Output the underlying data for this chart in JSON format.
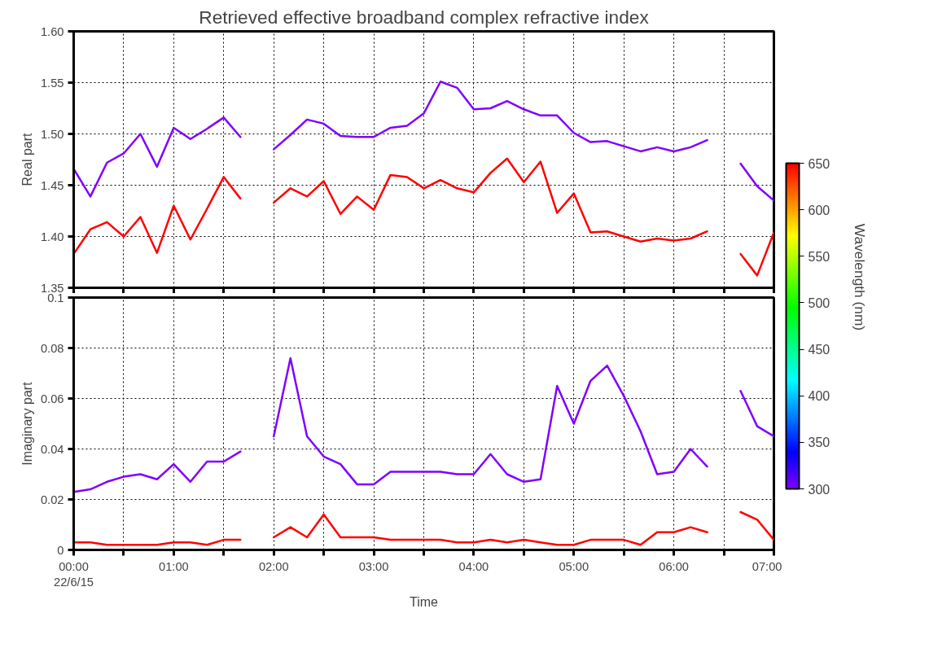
{
  "chart_data": [
    {
      "type": "line",
      "title": "Retrieved effective broadband complex refractive index",
      "ylabel": "Real part",
      "grid": true,
      "tick_labels": "y",
      "clabel": "Wavelength (nm)",
      "clim": [
        300,
        650
      ],
      "cticks": [
        300,
        350,
        400,
        450,
        500,
        550,
        600,
        650
      ],
      "xlim": [
        0,
        7
      ],
      "xticks": [
        {
          "value": 0,
          "label": null
        },
        {
          "value": 0.5,
          "label": null
        },
        {
          "value": 1,
          "label": null
        },
        {
          "value": 1.5,
          "label": null
        },
        {
          "value": 2,
          "label": null
        },
        {
          "value": 2.5,
          "label": null
        },
        {
          "value": 3,
          "label": null
        },
        {
          "value": 3.5,
          "label": null
        },
        {
          "value": 4,
          "label": null
        },
        {
          "value": 4.5,
          "label": null
        },
        {
          "value": 5,
          "label": null
        },
        {
          "value": 5.5,
          "label": null
        },
        {
          "value": 6,
          "label": null
        },
        {
          "value": 6.5,
          "label": null
        },
        {
          "value": 7,
          "label": null
        }
      ],
      "ylim": [
        1.35,
        1.6
      ],
      "yticks": [
        1.35,
        {
          "value": 1.4,
          "label": "1.40"
        },
        1.45,
        {
          "value": 1.5,
          "label": "1.50"
        },
        1.55,
        {
          "value": 1.6,
          "label": "1.60"
        }
      ],
      "x": [
        0,
        0.167,
        0.333,
        0.5,
        0.667,
        0.833,
        1,
        1.167,
        1.333,
        1.5,
        1.667,
        1.833,
        2,
        2.167,
        2.333,
        2.5,
        2.667,
        2.833,
        3,
        3.167,
        3.333,
        3.5,
        3.667,
        3.833,
        4,
        4.167,
        4.333,
        4.5,
        4.667,
        4.833,
        5,
        5.167,
        5.333,
        5.5,
        5.667,
        5.833,
        6,
        6.167,
        6.333,
        6.5,
        6.667,
        6.833,
        7
      ],
      "series": [
        {
          "color": "#8000ff",
          "values": [
            1.466,
            1.439,
            1.472,
            1.481,
            1.5,
            1.468,
            1.506,
            1.495,
            1.505,
            1.516,
            1.497,
            null,
            1.485,
            1.499,
            1.514,
            1.51,
            1.498,
            1.497,
            1.497,
            1.506,
            1.508,
            1.52,
            1.551,
            1.545,
            1.524,
            1.525,
            1.532,
            1.524,
            1.518,
            1.518,
            1.501,
            1.492,
            1.493,
            1.488,
            1.483,
            1.487,
            1.483,
            1.487,
            1.494,
            null,
            1.471,
            1.449,
            1.435
          ]
        },
        {
          "color": "#ff0000",
          "values": [
            1.383,
            1.407,
            1.414,
            1.4,
            1.419,
            1.384,
            1.43,
            1.397,
            1.427,
            1.458,
            1.437,
            null,
            1.433,
            1.447,
            1.439,
            1.454,
            1.422,
            1.439,
            1.426,
            1.46,
            1.458,
            1.447,
            1.455,
            1.447,
            1.443,
            1.462,
            1.476,
            1.453,
            1.473,
            1.423,
            1.442,
            1.404,
            1.405,
            1.4,
            1.395,
            1.398,
            1.396,
            1.398,
            1.405,
            null,
            1.383,
            1.362,
            1.404
          ]
        }
      ]
    },
    {
      "type": "line",
      "ylabel": "Imaginary part",
      "xlabel": "Time",
      "grid": true,
      "xlim": [
        0,
        7
      ],
      "xticks": [
        {
          "value": 0,
          "label": "00:00\n22/6/15"
        },
        {
          "value": 0.5,
          "label": null
        },
        {
          "value": 1,
          "label": "01:00"
        },
        {
          "value": 1.5,
          "label": null
        },
        {
          "value": 2,
          "label": "02:00"
        },
        {
          "value": 2.5,
          "label": null
        },
        {
          "value": 3,
          "label": "03:00"
        },
        {
          "value": 3.5,
          "label": null
        },
        {
          "value": 4,
          "label": "04:00"
        },
        {
          "value": 4.5,
          "label": null
        },
        {
          "value": 5,
          "label": "05:00"
        },
        {
          "value": 5.5,
          "label": null
        },
        {
          "value": 6,
          "label": "06:00"
        },
        {
          "value": 6.5,
          "label": null
        },
        {
          "value": 7,
          "label": "07:00"
        }
      ],
      "ylim": [
        0,
        0.1
      ],
      "yticks": [
        0,
        0.02,
        0.04,
        0.06,
        0.08,
        0.1
      ],
      "x": [
        0,
        0.167,
        0.333,
        0.5,
        0.667,
        0.833,
        1,
        1.167,
        1.333,
        1.5,
        1.667,
        1.833,
        2,
        2.167,
        2.333,
        2.5,
        2.667,
        2.833,
        3,
        3.167,
        3.333,
        3.5,
        3.667,
        3.833,
        4,
        4.167,
        4.333,
        4.5,
        4.667,
        4.833,
        5,
        5.167,
        5.333,
        5.5,
        5.667,
        5.833,
        6,
        6.167,
        6.333,
        6.5,
        6.667,
        6.833,
        7
      ],
      "series": [
        {
          "color": "#8000ff",
          "values": [
            0.023,
            0.024,
            0.027,
            0.029,
            0.03,
            0.028,
            0.034,
            0.027,
            0.035,
            0.035,
            0.039,
            null,
            0.045,
            0.076,
            0.045,
            0.037,
            0.034,
            0.026,
            0.026,
            0.031,
            0.031,
            0.031,
            0.031,
            0.03,
            0.03,
            0.038,
            0.03,
            0.027,
            0.028,
            0.065,
            0.05,
            0.067,
            0.073,
            0.061,
            0.047,
            0.03,
            0.031,
            0.04,
            0.033,
            null,
            0.063,
            0.049,
            0.045
          ]
        },
        {
          "color": "#ff0000",
          "values": [
            0.003,
            0.003,
            0.002,
            0.002,
            0.002,
            0.002,
            0.003,
            0.003,
            0.002,
            0.004,
            0.004,
            null,
            0.005,
            0.009,
            0.005,
            0.014,
            0.005,
            0.005,
            0.005,
            0.004,
            0.004,
            0.004,
            0.004,
            0.003,
            0.003,
            0.004,
            0.003,
            0.004,
            0.003,
            0.002,
            0.002,
            0.004,
            0.004,
            0.004,
            0.002,
            0.007,
            0.007,
            0.009,
            0.007,
            null,
            0.015,
            0.012,
            0.004
          ]
        }
      ]
    }
  ]
}
